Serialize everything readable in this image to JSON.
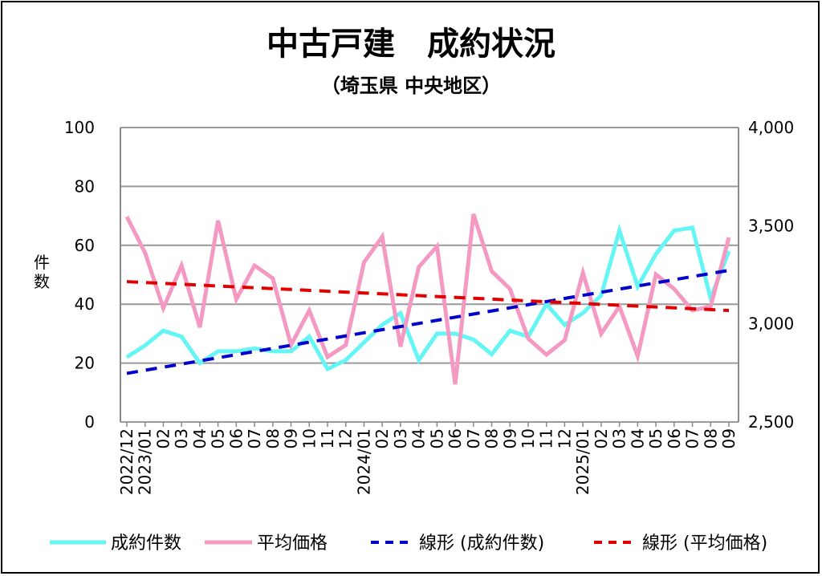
{
  "chart_data": {
    "type": "line",
    "title": "中古戸建　成約状況",
    "subtitle": "（埼玉県 中央地区）",
    "ylabel": "件数",
    "ylabel_right": "",
    "ylim": [
      0,
      100
    ],
    "ylim_right": [
      2500,
      4000
    ],
    "yticks": [
      "0",
      "20",
      "40",
      "60",
      "80",
      "100"
    ],
    "yticks_right": [
      "2,500",
      "3,000",
      "3,500",
      "4,000"
    ],
    "grid": true,
    "legend_position": "bottom",
    "categories": [
      "2022/12",
      "2023/01",
      "02",
      "03",
      "04",
      "05",
      "06",
      "07",
      "08",
      "09",
      "10",
      "11",
      "12",
      "2024/01",
      "02",
      "03",
      "04",
      "05",
      "06",
      "07",
      "08",
      "09",
      "10",
      "11",
      "12",
      "2025/01",
      "02",
      "03",
      "04",
      "05",
      "06",
      "07",
      "08",
      "09"
    ],
    "series": [
      {
        "name": "成約件数",
        "axis": "left",
        "color": "#66f5f5",
        "style": "solid",
        "values": [
          22,
          26,
          31,
          29,
          20,
          24,
          24,
          25,
          24,
          24,
          29,
          18,
          21,
          27,
          33,
          37,
          21,
          30,
          30,
          28,
          23,
          31,
          29,
          40,
          33,
          37,
          43,
          65,
          46,
          57,
          65,
          66,
          42,
          58
        ]
      },
      {
        "name": "平均価格",
        "axis": "right",
        "color": "#f49ac2",
        "style": "solid",
        "values": [
          3546,
          3362,
          3080,
          3297,
          2982,
          3526,
          3125,
          3297,
          3232,
          2892,
          3068,
          2831,
          2892,
          3313,
          3444,
          2884,
          3289,
          3395,
          2692,
          3559,
          3268,
          3178,
          2925,
          2843,
          2917,
          3260,
          2950,
          3089,
          2835,
          3252,
          3178,
          3068,
          3089,
          3440
        ]
      },
      {
        "name": "線形 (成約件数)",
        "axis": "left",
        "color": "#0000cc",
        "style": "dashed",
        "trend_start": 16.5,
        "trend_end": 51.5
      },
      {
        "name": "線形 (平均価格)",
        "axis": "right",
        "color": "#e00000",
        "style": "dashed",
        "trend_start": 3215,
        "trend_end": 3068
      }
    ]
  }
}
